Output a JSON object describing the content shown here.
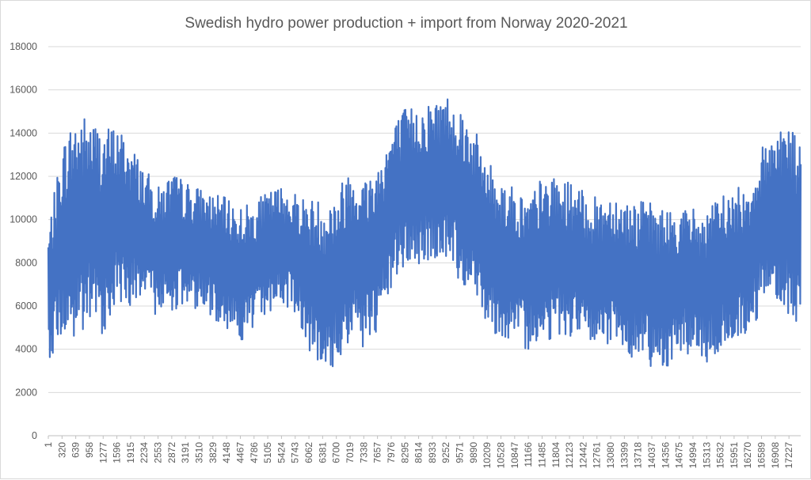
{
  "chart_data": {
    "type": "line",
    "title": "Swedish hydro power production + import from Norway 2020-2021",
    "xlabel": "",
    "ylabel": "",
    "ylim": [
      0,
      18000
    ],
    "y_ticks": [
      0,
      2000,
      4000,
      6000,
      8000,
      10000,
      12000,
      14000,
      16000,
      18000
    ],
    "x_range": [
      1,
      17500
    ],
    "x_ticks": [
      1,
      320,
      639,
      958,
      1277,
      1596,
      1915,
      2234,
      2553,
      2872,
      3191,
      3510,
      3829,
      4148,
      4467,
      4786,
      5105,
      5424,
      5743,
      6062,
      6381,
      6700,
      7019,
      7338,
      7657,
      7976,
      8295,
      8614,
      8933,
      9252,
      9571,
      9890,
      10209,
      10528,
      10847,
      11166,
      11485,
      11804,
      12123,
      12442,
      12761,
      13080,
      13399,
      13718,
      14037,
      14356,
      14675,
      14994,
      15313,
      15632,
      15951,
      16270,
      16589,
      16908,
      17227
    ],
    "grid": true,
    "legend": "none",
    "series_color": "#4472c4",
    "envelope_note_free": true,
    "series": [
      {
        "x": [
          1,
          320,
          639,
          958,
          1277,
          1596,
          1915,
          2234,
          2553,
          2872,
          3191,
          3510,
          3829,
          4148,
          4467,
          4786,
          5105,
          5424,
          5743,
          6062,
          6381,
          6700,
          7019,
          7338,
          7657,
          7976,
          8295,
          8614,
          8933,
          9252,
          9571,
          9890,
          10209,
          10528,
          10847,
          11166,
          11485,
          11804,
          12123,
          12442,
          12761,
          13080,
          13399,
          13718,
          14037,
          14356,
          14675,
          14994,
          15313,
          15632,
          15951,
          16270,
          16589,
          16908,
          17227,
          17500
        ],
        "mid": [
          6500,
          9000,
          9500,
          9800,
          9500,
          10200,
          9800,
          9200,
          8500,
          9000,
          8800,
          8700,
          8300,
          8000,
          7500,
          7800,
          8500,
          8800,
          8500,
          7500,
          6800,
          7200,
          8500,
          8000,
          8500,
          10500,
          11500,
          11500,
          11800,
          12000,
          11200,
          10500,
          9000,
          8200,
          7800,
          7500,
          8200,
          8200,
          8200,
          7800,
          7500,
          7800,
          7400,
          7200,
          7000,
          6800,
          7200,
          7100,
          6800,
          7500,
          7800,
          8200,
          9500,
          10500,
          10000,
          9000
        ],
        "amp": [
          3000,
          4500,
          5500,
          5000,
          4800,
          4200,
          3800,
          3200,
          3000,
          3200,
          3000,
          2800,
          2900,
          3000,
          3200,
          3000,
          2800,
          2800,
          2800,
          3500,
          4200,
          4000,
          4200,
          4000,
          4200,
          3800,
          3700,
          3800,
          3700,
          3900,
          4200,
          3800,
          3800,
          3800,
          3700,
          3500,
          3800,
          3700,
          3600,
          3500,
          3500,
          3600,
          3600,
          3700,
          3800,
          3700,
          3300,
          3500,
          3500,
          3700,
          3600,
          3500,
          3800,
          4000,
          4600,
          4500
        ]
      }
    ]
  }
}
